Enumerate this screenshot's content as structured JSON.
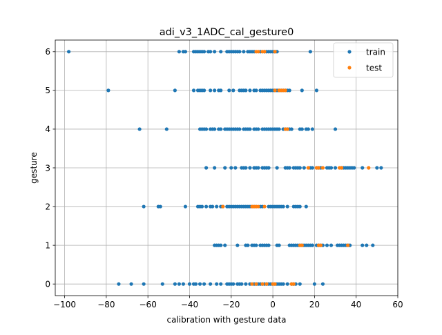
{
  "chart_data": {
    "type": "scatter",
    "title": "adi_v3_1ADC_cal_gesture0",
    "xlabel": "calibration with gesture data",
    "ylabel": "gesture",
    "xlim": [
      -104.5,
      60
    ],
    "ylim": [
      -0.3,
      6.3
    ],
    "xticks": [
      -100,
      -80,
      -60,
      -40,
      -20,
      0,
      20,
      40,
      60
    ],
    "yticks": [
      0,
      1,
      2,
      3,
      4,
      5,
      6
    ],
    "grid": true,
    "legend": "top-right",
    "series": [
      {
        "name": "train",
        "color": "#1f77b4",
        "points": [
          [
            -98,
            6
          ],
          [
            -45,
            6
          ],
          [
            -43,
            6
          ],
          [
            -42,
            6
          ],
          [
            -38,
            6
          ],
          [
            -37,
            6
          ],
          [
            -36,
            6
          ],
          [
            -35,
            6
          ],
          [
            -34,
            6
          ],
          [
            -33,
            6
          ],
          [
            -31,
            6
          ],
          [
            -30,
            6
          ],
          [
            -28,
            6
          ],
          [
            -25,
            6
          ],
          [
            -22,
            6
          ],
          [
            -21,
            6
          ],
          [
            -20,
            6
          ],
          [
            -19,
            6
          ],
          [
            -18,
            6
          ],
          [
            -17,
            6
          ],
          [
            -16,
            6
          ],
          [
            -14,
            6
          ],
          [
            -12,
            6
          ],
          [
            -11,
            6
          ],
          [
            -10,
            6
          ],
          [
            -9,
            6
          ],
          [
            -6,
            6
          ],
          [
            -4,
            6
          ],
          [
            -3,
            6
          ],
          [
            -2,
            6
          ],
          [
            -1,
            6
          ],
          [
            0,
            6
          ],
          [
            1,
            6
          ],
          [
            2,
            6
          ],
          [
            18,
            6
          ],
          [
            -79,
            5
          ],
          [
            -47,
            5
          ],
          [
            -38,
            5
          ],
          [
            -36,
            5
          ],
          [
            -35,
            5
          ],
          [
            -34,
            5
          ],
          [
            -33,
            5
          ],
          [
            -30,
            5
          ],
          [
            -28,
            5
          ],
          [
            -26,
            5
          ],
          [
            -25,
            5
          ],
          [
            -21,
            5
          ],
          [
            -19,
            5
          ],
          [
            -16,
            5
          ],
          [
            -15,
            5
          ],
          [
            -14,
            5
          ],
          [
            -13,
            5
          ],
          [
            -11,
            5
          ],
          [
            -9,
            5
          ],
          [
            -8,
            5
          ],
          [
            -6,
            5
          ],
          [
            -5,
            5
          ],
          [
            -4,
            5
          ],
          [
            -3,
            5
          ],
          [
            -2,
            5
          ],
          [
            -1,
            5
          ],
          [
            0,
            5
          ],
          [
            1,
            5
          ],
          [
            2,
            5
          ],
          [
            3,
            5
          ],
          [
            4,
            5
          ],
          [
            5,
            5
          ],
          [
            6,
            5
          ],
          [
            7,
            5
          ],
          [
            8,
            5
          ],
          [
            14,
            5
          ],
          [
            21,
            5
          ],
          [
            -64,
            4
          ],
          [
            -51,
            4
          ],
          [
            -35,
            4
          ],
          [
            -34,
            4
          ],
          [
            -33,
            4
          ],
          [
            -32,
            4
          ],
          [
            -30,
            4
          ],
          [
            -29,
            4
          ],
          [
            -28,
            4
          ],
          [
            -26,
            4
          ],
          [
            -25,
            4
          ],
          [
            -23,
            4
          ],
          [
            -22,
            4
          ],
          [
            -21,
            4
          ],
          [
            -20,
            4
          ],
          [
            -19,
            4
          ],
          [
            -18,
            4
          ],
          [
            -17,
            4
          ],
          [
            -16,
            4
          ],
          [
            -14,
            4
          ],
          [
            -13,
            4
          ],
          [
            -12,
            4
          ],
          [
            -11,
            4
          ],
          [
            -9,
            4
          ],
          [
            -8,
            4
          ],
          [
            -7,
            4
          ],
          [
            -5,
            4
          ],
          [
            -4,
            4
          ],
          [
            -3,
            4
          ],
          [
            -2,
            4
          ],
          [
            -1,
            4
          ],
          [
            0,
            4
          ],
          [
            1,
            4
          ],
          [
            2,
            4
          ],
          [
            3,
            4
          ],
          [
            5,
            4
          ],
          [
            6,
            4
          ],
          [
            7,
            4
          ],
          [
            8,
            4
          ],
          [
            9,
            4
          ],
          [
            13,
            4
          ],
          [
            14,
            4
          ],
          [
            16,
            4
          ],
          [
            17,
            4
          ],
          [
            19,
            4
          ],
          [
            30,
            4
          ],
          [
            -32,
            3
          ],
          [
            -28,
            3
          ],
          [
            -23,
            3
          ],
          [
            -20,
            3
          ],
          [
            -18,
            3
          ],
          [
            -15,
            3
          ],
          [
            -14,
            3
          ],
          [
            -13,
            3
          ],
          [
            -11,
            3
          ],
          [
            -9,
            3
          ],
          [
            -8,
            3
          ],
          [
            -7,
            3
          ],
          [
            -5,
            3
          ],
          [
            -4,
            3
          ],
          [
            -3,
            3
          ],
          [
            -2,
            3
          ],
          [
            2,
            3
          ],
          [
            6,
            3
          ],
          [
            7,
            3
          ],
          [
            8,
            3
          ],
          [
            10,
            3
          ],
          [
            11,
            3
          ],
          [
            12,
            3
          ],
          [
            13,
            3
          ],
          [
            15,
            3
          ],
          [
            18,
            3
          ],
          [
            19,
            3
          ],
          [
            21,
            3
          ],
          [
            22,
            3
          ],
          [
            23,
            3
          ],
          [
            26,
            3
          ],
          [
            27,
            3
          ],
          [
            28,
            3
          ],
          [
            30,
            3
          ],
          [
            33,
            3
          ],
          [
            34,
            3
          ],
          [
            35,
            3
          ],
          [
            36,
            3
          ],
          [
            37,
            3
          ],
          [
            38,
            3
          ],
          [
            39,
            3
          ],
          [
            43,
            3
          ],
          [
            50,
            3
          ],
          [
            52,
            3
          ],
          [
            -62,
            2
          ],
          [
            -55,
            2
          ],
          [
            -54,
            2
          ],
          [
            -42,
            2
          ],
          [
            -36,
            2
          ],
          [
            -35,
            2
          ],
          [
            -34,
            2
          ],
          [
            -32,
            2
          ],
          [
            -30,
            2
          ],
          [
            -29,
            2
          ],
          [
            -27,
            2
          ],
          [
            -25,
            2
          ],
          [
            -24,
            2
          ],
          [
            -22,
            2
          ],
          [
            -21,
            2
          ],
          [
            -20,
            2
          ],
          [
            -19,
            2
          ],
          [
            -18,
            2
          ],
          [
            -17,
            2
          ],
          [
            -16,
            2
          ],
          [
            -15,
            2
          ],
          [
            -14,
            2
          ],
          [
            -13,
            2
          ],
          [
            -12,
            2
          ],
          [
            -11,
            2
          ],
          [
            -10,
            2
          ],
          [
            -9,
            2
          ],
          [
            -8,
            2
          ],
          [
            -6,
            2
          ],
          [
            -5,
            2
          ],
          [
            -2,
            2
          ],
          [
            -1,
            2
          ],
          [
            0,
            2
          ],
          [
            1,
            2
          ],
          [
            2,
            2
          ],
          [
            3,
            2
          ],
          [
            4,
            2
          ],
          [
            5,
            2
          ],
          [
            7,
            2
          ],
          [
            10,
            2
          ],
          [
            11,
            2
          ],
          [
            12,
            2
          ],
          [
            13,
            2
          ],
          [
            16,
            2
          ],
          [
            -28,
            1
          ],
          [
            -27,
            1
          ],
          [
            -26,
            1
          ],
          [
            -25,
            1
          ],
          [
            -23,
            1
          ],
          [
            -17,
            1
          ],
          [
            -13,
            1
          ],
          [
            -12,
            1
          ],
          [
            -10,
            1
          ],
          [
            -9,
            1
          ],
          [
            -8,
            1
          ],
          [
            -6,
            1
          ],
          [
            -5,
            1
          ],
          [
            -4,
            1
          ],
          [
            -3,
            1
          ],
          [
            -2,
            1
          ],
          [
            2,
            1
          ],
          [
            3,
            1
          ],
          [
            8,
            1
          ],
          [
            9,
            1
          ],
          [
            10,
            1
          ],
          [
            11,
            1
          ],
          [
            12,
            1
          ],
          [
            13,
            1
          ],
          [
            14,
            1
          ],
          [
            15,
            1
          ],
          [
            16,
            1
          ],
          [
            17,
            1
          ],
          [
            18,
            1
          ],
          [
            19,
            1
          ],
          [
            21,
            1
          ],
          [
            22,
            1
          ],
          [
            23,
            1
          ],
          [
            24,
            1
          ],
          [
            26,
            1
          ],
          [
            28,
            1
          ],
          [
            31,
            1
          ],
          [
            32,
            1
          ],
          [
            33,
            1
          ],
          [
            34,
            1
          ],
          [
            35,
            1
          ],
          [
            36,
            1
          ],
          [
            37,
            1
          ],
          [
            43,
            1
          ],
          [
            45,
            1
          ],
          [
            48,
            1
          ],
          [
            -74,
            0
          ],
          [
            -68,
            0
          ],
          [
            -62,
            0
          ],
          [
            -53,
            0
          ],
          [
            -47,
            0
          ],
          [
            -45,
            0
          ],
          [
            -43,
            0
          ],
          [
            -40,
            0
          ],
          [
            -38,
            0
          ],
          [
            -37,
            0
          ],
          [
            -35,
            0
          ],
          [
            -33,
            0
          ],
          [
            -30,
            0
          ],
          [
            -27,
            0
          ],
          [
            -25,
            0
          ],
          [
            -22,
            0
          ],
          [
            -21,
            0
          ],
          [
            -20,
            0
          ],
          [
            -19,
            0
          ],
          [
            -17,
            0
          ],
          [
            -16,
            0
          ],
          [
            -15,
            0
          ],
          [
            -13,
            0
          ],
          [
            -11,
            0
          ],
          [
            -9,
            0
          ],
          [
            -8,
            0
          ],
          [
            -7,
            0
          ],
          [
            -6,
            0
          ],
          [
            -5,
            0
          ],
          [
            -4,
            0
          ],
          [
            -3,
            0
          ],
          [
            -2,
            0
          ],
          [
            -1,
            0
          ],
          [
            0,
            0
          ],
          [
            1,
            0
          ],
          [
            2,
            0
          ],
          [
            3,
            0
          ],
          [
            4,
            0
          ],
          [
            5,
            0
          ],
          [
            7,
            0
          ],
          [
            9,
            0
          ],
          [
            10,
            0
          ],
          [
            11,
            0
          ],
          [
            13,
            0
          ],
          [
            20,
            0
          ],
          [
            24,
            0
          ]
        ]
      },
      {
        "name": "test",
        "color": "#ff7f0e",
        "points": [
          [
            -8,
            6
          ],
          [
            -7,
            6
          ],
          [
            -5,
            6
          ],
          [
            -4,
            6
          ],
          [
            1,
            6
          ],
          [
            1,
            5
          ],
          [
            3,
            5
          ],
          [
            4,
            5
          ],
          [
            5,
            5
          ],
          [
            6,
            5
          ],
          [
            6,
            4
          ],
          [
            7,
            4
          ],
          [
            17,
            3
          ],
          [
            21,
            3
          ],
          [
            22,
            3
          ],
          [
            24,
            3
          ],
          [
            32,
            3
          ],
          [
            33,
            3
          ],
          [
            46,
            3
          ],
          [
            -24,
            2
          ],
          [
            -10,
            2
          ],
          [
            -9,
            2
          ],
          [
            -8,
            2
          ],
          [
            -7,
            2
          ],
          [
            -4,
            2
          ],
          [
            13,
            1
          ],
          [
            14,
            1
          ],
          [
            22,
            1
          ],
          [
            23,
            1
          ],
          [
            36,
            1
          ],
          [
            -10,
            0
          ],
          [
            -8,
            0
          ],
          [
            -5,
            0
          ],
          [
            -3,
            0
          ],
          [
            0,
            0
          ],
          [
            1,
            0
          ],
          [
            9,
            0
          ],
          [
            10,
            0
          ]
        ]
      }
    ]
  }
}
